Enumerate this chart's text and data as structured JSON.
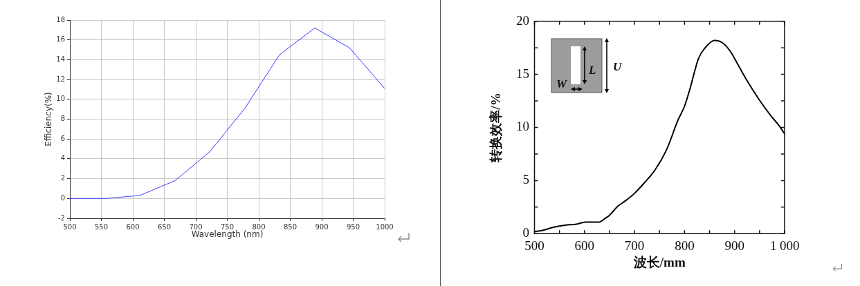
{
  "chart_data": [
    {
      "type": "line",
      "xlabel": "Wavelength (nm)",
      "ylabel": "Efficiency(%)",
      "x": [
        500,
        556,
        611,
        667,
        722,
        778,
        833,
        889,
        944,
        1000
      ],
      "series": [
        {
          "color": "#3c3cff",
          "values": [
            0,
            0,
            0.3,
            1.8,
            4.7,
            9.1,
            14.5,
            17.2,
            15.2,
            11.1
          ]
        }
      ],
      "xlim": [
        500,
        1000
      ],
      "xticks": [
        500,
        550,
        600,
        650,
        700,
        750,
        800,
        850,
        900,
        950,
        1000
      ],
      "ylim": [
        -2,
        18
      ],
      "yticks": [
        -2,
        0,
        2,
        4,
        6,
        8,
        10,
        12,
        14,
        16,
        18
      ],
      "grid": true,
      "legend": false,
      "marker": "none",
      "line_style": "solid"
    },
    {
      "type": "line",
      "xlabel": "波长/mm",
      "ylabel": "转换效率/%",
      "annotations": [
        "L",
        "W",
        "U"
      ],
      "x": [
        500,
        515,
        538,
        561,
        584,
        602,
        630,
        640,
        649,
        667,
        682,
        700,
        718,
        741,
        764,
        787,
        800,
        810,
        828,
        845,
        860,
        875,
        891,
        907,
        925,
        948,
        971,
        990,
        1000
      ],
      "series": [
        {
          "color": "#000000",
          "values": [
            0.2,
            0.3,
            0.6,
            0.8,
            0.9,
            1.1,
            1.1,
            1.4,
            1.7,
            2.6,
            3.1,
            3.8,
            4.7,
            6.0,
            7.9,
            10.7,
            12.0,
            13.5,
            16.5,
            17.7,
            18.2,
            18.0,
            17.2,
            15.9,
            14.4,
            12.7,
            11.2,
            10.1,
            9.4
          ]
        }
      ],
      "xlim": [
        500,
        1000
      ],
      "xticks": [
        500,
        {
          "value": 550,
          "label": null
        },
        600,
        {
          "value": 650,
          "label": null
        },
        700,
        {
          "value": 750,
          "label": null
        },
        800,
        {
          "value": 850,
          "label": null
        },
        900,
        {
          "value": 950,
          "label": null
        },
        {
          "value": 1000,
          "label": "1 000"
        }
      ],
      "ylim": [
        0,
        20
      ],
      "yticks": [
        0,
        {
          "value": 2.5,
          "label": null
        },
        5,
        {
          "value": 7.5,
          "label": null
        },
        10,
        {
          "value": 12.5,
          "label": null
        },
        15,
        {
          "value": 17.5,
          "label": null
        },
        20
      ],
      "grid": false,
      "legend": false,
      "marker": "none",
      "line_style": "solid"
    }
  ]
}
